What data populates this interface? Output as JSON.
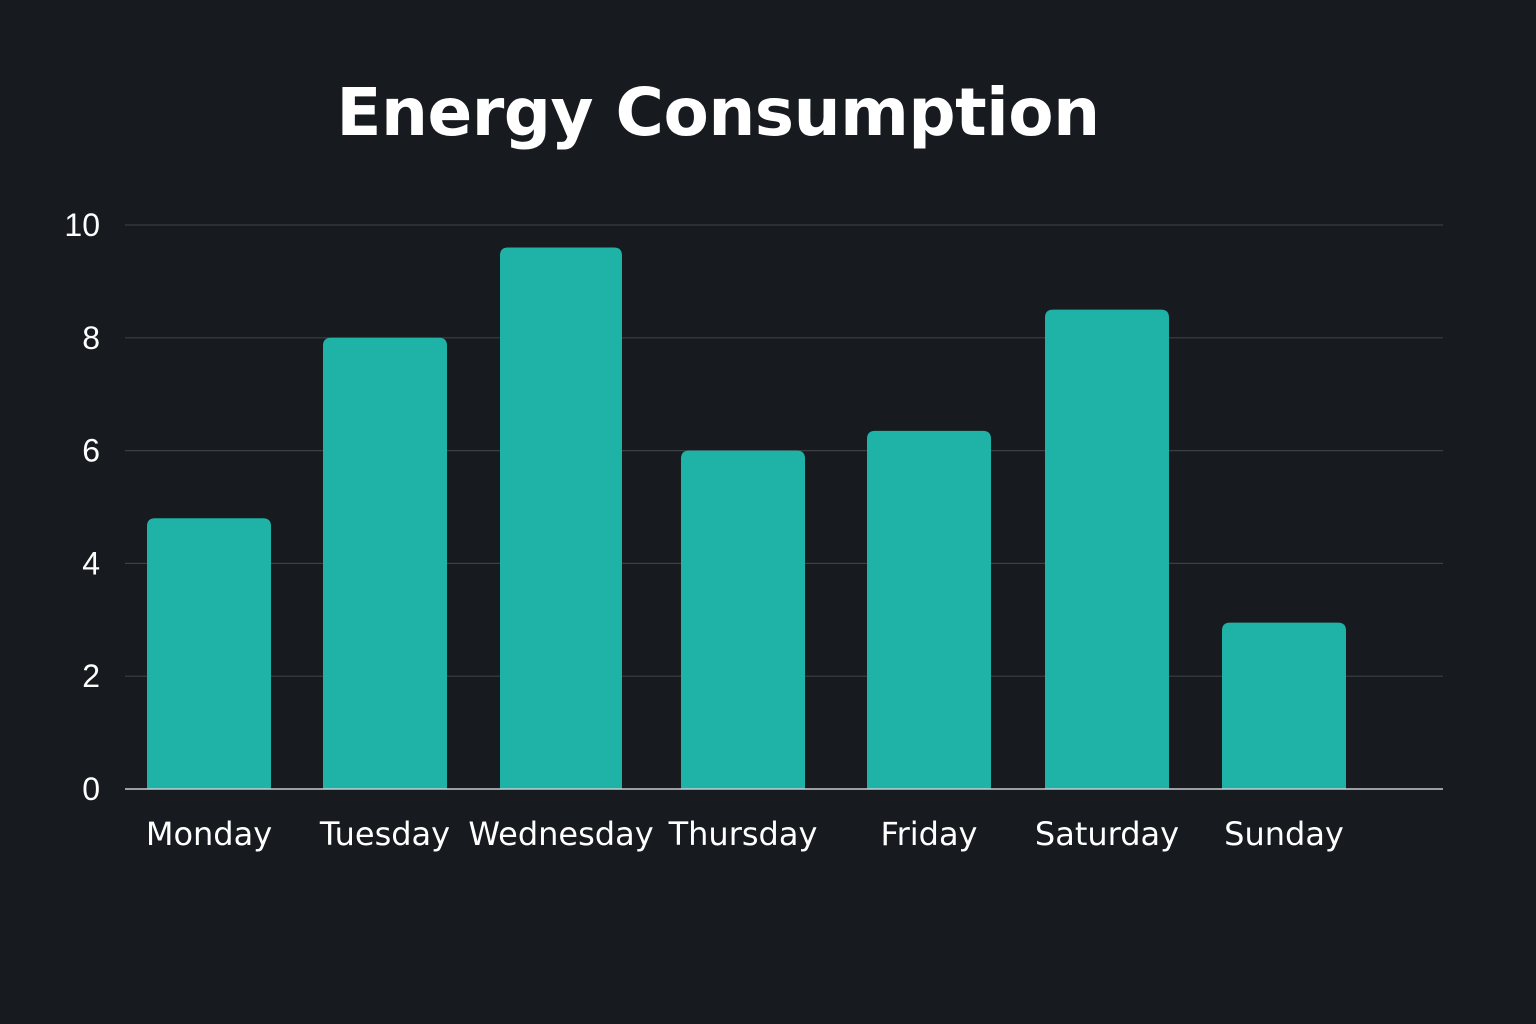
{
  "chart_data": {
    "type": "bar",
    "title": "Energy Consumption",
    "xlabel": "",
    "ylabel": "",
    "categories": [
      "Monday",
      "Tuesday",
      "Wednesday",
      "Thursday",
      "Friday",
      "Saturday",
      "Sunday"
    ],
    "values": [
      4.8,
      8.0,
      9.6,
      6.0,
      6.35,
      8.5,
      2.95
    ],
    "ylim": [
      0,
      10
    ],
    "yticks": [
      0,
      2,
      4,
      6,
      8,
      10
    ],
    "grid": true,
    "legend": "none",
    "colors": {
      "background": "#171a1e",
      "bar": "#1fb2a6",
      "grid": "#3a3f45",
      "text": "#ffffff"
    }
  }
}
